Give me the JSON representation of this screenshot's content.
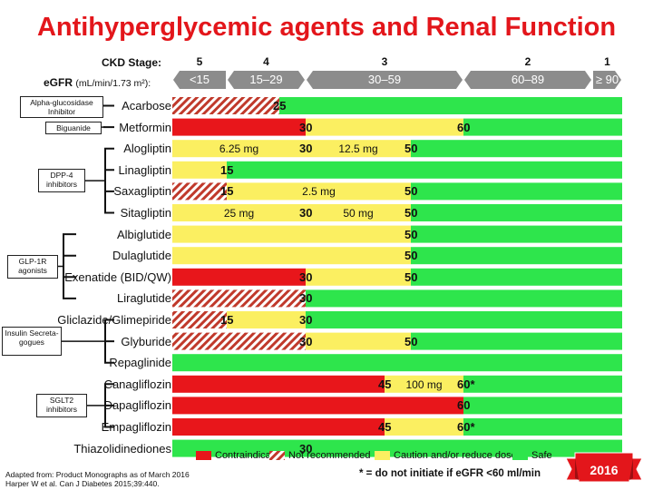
{
  "title": "Antihyperglycemic agents and Renal Function",
  "header": {
    "ckd_label": "CKD Stage:",
    "egfr_label": "eGFR",
    "egfr_unit": "(mL/min/1.73 m²):"
  },
  "colors": {
    "contraindicated": "#e8161b",
    "not_recommended": "#c0392b",
    "caution": "#fbef61",
    "safe": "#2ee54c",
    "arrow": "#8c8c8c",
    "title": "#e3161b"
  },
  "chart_data": {
    "type": "bar",
    "title": "Antihyperglycemic agents and Renal Function",
    "x_axis": {
      "label": "eGFR (mL/min/1.73 m²)",
      "stages": [
        {
          "stage": "5",
          "range": "<15",
          "min": 0,
          "max": 15
        },
        {
          "stage": "4",
          "range": "15–29",
          "min": 15,
          "max": 30
        },
        {
          "stage": "3",
          "range": "30–59",
          "min": 30,
          "max": 60
        },
        {
          "stage": "2",
          "range": "60–89",
          "min": 60,
          "max": 90
        },
        {
          "stage": "1",
          "range": "≥ 90",
          "min": 90,
          "max": 100
        }
      ]
    },
    "groups": [
      {
        "name": "Alpha-glucosidase Inhibitor",
        "rows": [
          0
        ]
      },
      {
        "name": "Biguanide",
        "rows": [
          1
        ]
      },
      {
        "name": "DPP-4 inhibitors",
        "rows": [
          2,
          3,
          4,
          5
        ]
      },
      {
        "name": "GLP-1R agonists",
        "rows": [
          6,
          7,
          8,
          9
        ]
      },
      {
        "name": "Insulin Secreta-gogues",
        "rows": [
          10,
          11,
          12
        ]
      },
      {
        "name": "SGLT2 inhibitors",
        "rows": [
          13,
          14,
          15
        ]
      }
    ],
    "rows": [
      {
        "drug": "Acarbose",
        "segments": [
          {
            "from": 0,
            "to": 25,
            "status": "not_recommended"
          },
          {
            "from": 25,
            "to": 100,
            "status": "safe"
          }
        ],
        "thresholds": [
          {
            "value": 25,
            "label": "25"
          }
        ],
        "dose_labels": []
      },
      {
        "drug": "Metformin",
        "segments": [
          {
            "from": 0,
            "to": 30,
            "status": "contraindicated"
          },
          {
            "from": 30,
            "to": 60,
            "status": "caution"
          },
          {
            "from": 60,
            "to": 100,
            "status": "safe"
          }
        ],
        "thresholds": [
          {
            "value": 30,
            "label": "30"
          },
          {
            "value": 60,
            "label": "60"
          }
        ],
        "dose_labels": []
      },
      {
        "drug": "Alogliptin",
        "segments": [
          {
            "from": 0,
            "to": 50,
            "status": "caution"
          },
          {
            "from": 50,
            "to": 100,
            "status": "safe"
          }
        ],
        "thresholds": [
          {
            "value": 30,
            "label": "30"
          },
          {
            "value": 50,
            "label": "50"
          }
        ],
        "dose_labels": [
          {
            "from": 0,
            "to": 30,
            "label": "6.25 mg"
          },
          {
            "from": 30,
            "to": 50,
            "label": "12.5 mg"
          }
        ]
      },
      {
        "drug": "Linagliptin",
        "segments": [
          {
            "from": 0,
            "to": 15,
            "status": "caution"
          },
          {
            "from": 15,
            "to": 100,
            "status": "safe"
          }
        ],
        "thresholds": [
          {
            "value": 15,
            "label": "15"
          }
        ],
        "dose_labels": []
      },
      {
        "drug": "Saxagliptin",
        "segments": [
          {
            "from": 0,
            "to": 15,
            "status": "not_recommended"
          },
          {
            "from": 15,
            "to": 50,
            "status": "caution"
          },
          {
            "from": 50,
            "to": 100,
            "status": "safe"
          }
        ],
        "thresholds": [
          {
            "value": 15,
            "label": "15"
          },
          {
            "value": 50,
            "label": "50"
          }
        ],
        "dose_labels": [
          {
            "from": 15,
            "to": 50,
            "label": "2.5 mg"
          }
        ]
      },
      {
        "drug": "Sitagliptin",
        "segments": [
          {
            "from": 0,
            "to": 50,
            "status": "caution"
          },
          {
            "from": 50,
            "to": 100,
            "status": "safe"
          }
        ],
        "thresholds": [
          {
            "value": 30,
            "label": "30"
          },
          {
            "value": 50,
            "label": "50"
          }
        ],
        "dose_labels": [
          {
            "from": 0,
            "to": 30,
            "label": "25 mg"
          },
          {
            "from": 30,
            "to": 50,
            "label": "50 mg"
          }
        ]
      },
      {
        "drug": "Albiglutide",
        "segments": [
          {
            "from": 0,
            "to": 50,
            "status": "caution"
          },
          {
            "from": 50,
            "to": 100,
            "status": "safe"
          }
        ],
        "thresholds": [
          {
            "value": 50,
            "label": "50"
          }
        ],
        "dose_labels": []
      },
      {
        "drug": "Dulaglutide",
        "segments": [
          {
            "from": 0,
            "to": 50,
            "status": "caution"
          },
          {
            "from": 50,
            "to": 100,
            "status": "safe"
          }
        ],
        "thresholds": [
          {
            "value": 50,
            "label": "50"
          }
        ],
        "dose_labels": []
      },
      {
        "drug": "Exenatide (BID/QW)",
        "segments": [
          {
            "from": 0,
            "to": 30,
            "status": "contraindicated"
          },
          {
            "from": 30,
            "to": 50,
            "status": "caution"
          },
          {
            "from": 50,
            "to": 100,
            "status": "safe"
          }
        ],
        "thresholds": [
          {
            "value": 30,
            "label": "30"
          },
          {
            "value": 50,
            "label": "50"
          }
        ],
        "dose_labels": []
      },
      {
        "drug": "Liraglutide",
        "segments": [
          {
            "from": 0,
            "to": 30,
            "status": "not_recommended"
          },
          {
            "from": 30,
            "to": 100,
            "status": "safe"
          }
        ],
        "thresholds": [
          {
            "value": 30,
            "label": "30"
          }
        ],
        "dose_labels": []
      },
      {
        "drug": "Gliclazide/Glimepiride",
        "segments": [
          {
            "from": 0,
            "to": 15,
            "status": "not_recommended"
          },
          {
            "from": 15,
            "to": 30,
            "status": "caution"
          },
          {
            "from": 30,
            "to": 100,
            "status": "safe"
          }
        ],
        "thresholds": [
          {
            "value": 15,
            "label": "15"
          },
          {
            "value": 30,
            "label": "30"
          }
        ],
        "dose_labels": []
      },
      {
        "drug": "Glyburide",
        "segments": [
          {
            "from": 0,
            "to": 30,
            "status": "not_recommended"
          },
          {
            "from": 30,
            "to": 50,
            "status": "caution"
          },
          {
            "from": 50,
            "to": 100,
            "status": "safe"
          }
        ],
        "thresholds": [
          {
            "value": 30,
            "label": "30"
          },
          {
            "value": 50,
            "label": "50"
          }
        ],
        "dose_labels": []
      },
      {
        "drug": "Repaglinide",
        "segments": [
          {
            "from": 0,
            "to": 100,
            "status": "safe"
          }
        ],
        "thresholds": [],
        "dose_labels": []
      },
      {
        "drug": "Canagliflozin",
        "segments": [
          {
            "from": 0,
            "to": 45,
            "status": "contraindicated"
          },
          {
            "from": 45,
            "to": 60,
            "status": "caution"
          },
          {
            "from": 60,
            "to": 100,
            "status": "safe"
          }
        ],
        "thresholds": [
          {
            "value": 45,
            "label": "45"
          },
          {
            "value": 60,
            "label": "60*"
          }
        ],
        "dose_labels": [
          {
            "from": 45,
            "to": 60,
            "label": "100 mg"
          }
        ]
      },
      {
        "drug": "Dapagliflozin",
        "segments": [
          {
            "from": 0,
            "to": 60,
            "status": "contraindicated"
          },
          {
            "from": 60,
            "to": 100,
            "status": "safe"
          }
        ],
        "thresholds": [
          {
            "value": 60,
            "label": "60"
          }
        ],
        "dose_labels": []
      },
      {
        "drug": "Empagliflozin",
        "segments": [
          {
            "from": 0,
            "to": 45,
            "status": "contraindicated"
          },
          {
            "from": 45,
            "to": 60,
            "status": "caution"
          },
          {
            "from": 60,
            "to": 100,
            "status": "safe"
          }
        ],
        "thresholds": [
          {
            "value": 45,
            "label": "45"
          },
          {
            "value": 60,
            "label": "60*"
          }
        ],
        "dose_labels": []
      },
      {
        "drug": "Thiazolidinediones",
        "segments": [
          {
            "from": 0,
            "to": 100,
            "status": "safe"
          }
        ],
        "thresholds": [
          {
            "value": 30,
            "label": "30"
          }
        ],
        "dose_labels": []
      }
    ],
    "legend": [
      {
        "status": "contraindicated",
        "label": "Contraindicated"
      },
      {
        "status": "not_recommended",
        "label": "Not recommended"
      },
      {
        "status": "caution",
        "label": "Caution and/or reduce dose"
      },
      {
        "status": "safe",
        "label": "Safe"
      }
    ]
  },
  "footnote": {
    "line1": "Adapted from: Product Monographs as of March 2016",
    "line2": "Harper W et al. Can J Diabetes 2015;39:440."
  },
  "note": "* = do not initiate if eGFR <60 ml/min",
  "badge": "2016"
}
